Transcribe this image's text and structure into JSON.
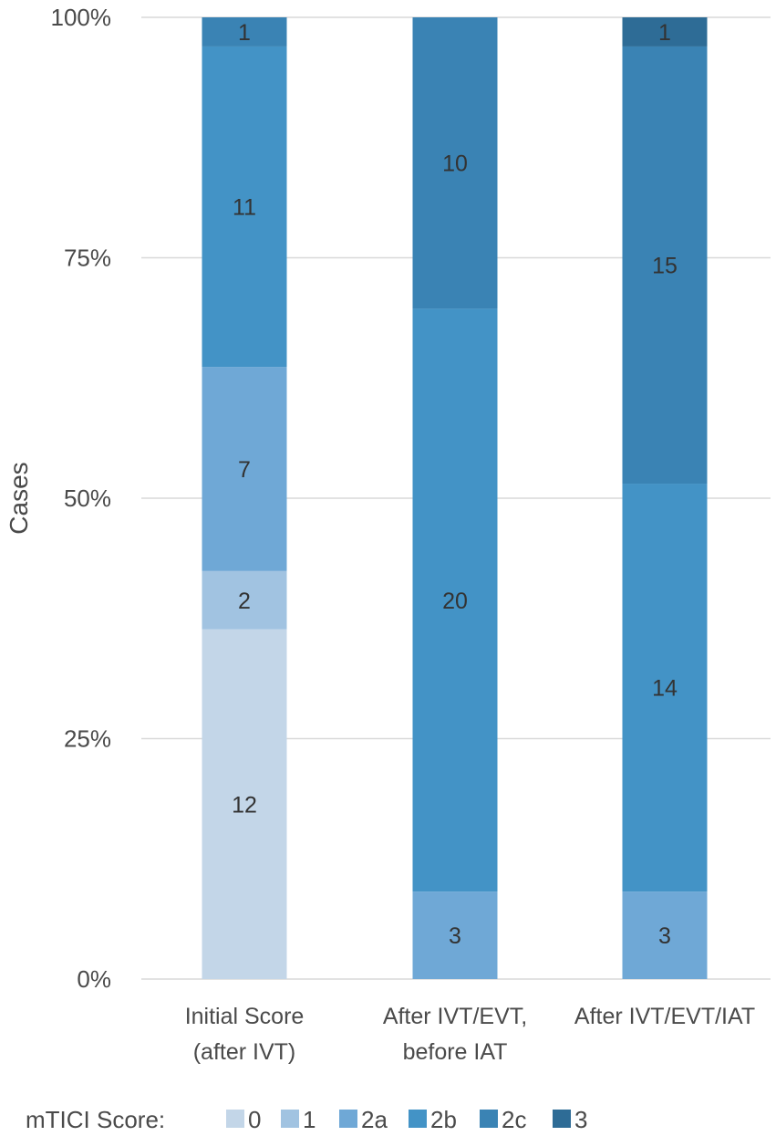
{
  "chart_data": {
    "type": "bar",
    "stacked": "percent",
    "title": "",
    "xlabel": "",
    "ylabel": "Cases",
    "ylim": [
      0,
      100
    ],
    "yticks": [
      "0%",
      "25%",
      "50%",
      "75%",
      "100%"
    ],
    "grid": true,
    "categories": [
      [
        "Initial Score",
        "(after IVT)"
      ],
      [
        "After IVT/EVT,",
        "before IAT"
      ],
      [
        "After IVT/EVT/IAT"
      ]
    ],
    "legend": {
      "title": "mTICI Score:",
      "position": "bottom"
    },
    "series": [
      {
        "name": "0",
        "color": "#c3d6e8",
        "values": [
          12,
          0,
          0
        ]
      },
      {
        "name": "1",
        "color": "#a1c3e1",
        "values": [
          2,
          0,
          0
        ]
      },
      {
        "name": "2a",
        "color": "#6fa8d6",
        "values": [
          7,
          3,
          3
        ]
      },
      {
        "name": "2b",
        "color": "#4393c6",
        "values": [
          11,
          20,
          14
        ]
      },
      {
        "name": "2c",
        "color": "#3a83b4",
        "values": [
          1,
          10,
          15
        ]
      },
      {
        "name": "3",
        "color": "#2e6c96",
        "values": [
          0,
          0,
          1
        ]
      }
    ]
  }
}
